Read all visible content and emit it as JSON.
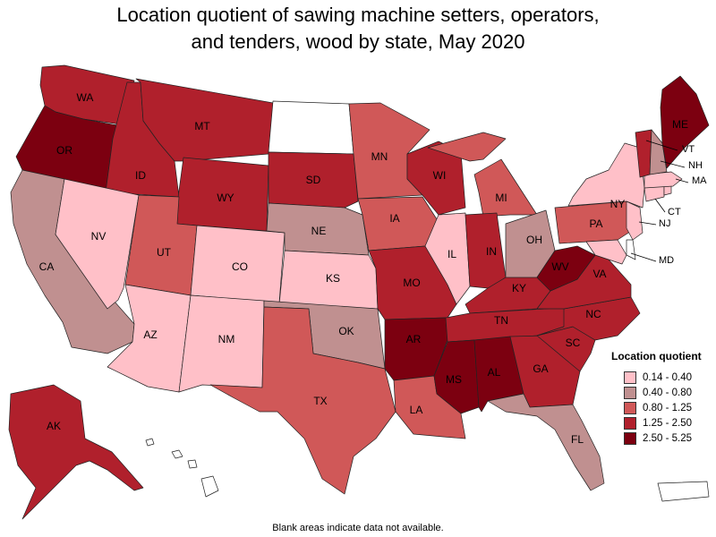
{
  "title_line1": "Location quotient of sawing machine setters, operators,",
  "title_line2": "and tenders, wood by state, May 2020",
  "footnote": "Blank areas indicate data not available.",
  "legend": {
    "title": "Location quotient",
    "items": [
      {
        "label": "0.14 - 0.40",
        "color": "#ffc0c8"
      },
      {
        "label": "0.40 - 0.80",
        "color": "#c09090"
      },
      {
        "label": "0.80 - 1.25",
        "color": "#d05858"
      },
      {
        "label": "1.25 - 2.50",
        "color": "#b0202c"
      },
      {
        "label": "2.50 - 5.25",
        "color": "#7c0010"
      }
    ]
  },
  "no_data_color": "#ffffff",
  "states": {
    "WA": {
      "name": "WA",
      "bin": 3
    },
    "OR": {
      "name": "OR",
      "bin": 4
    },
    "CA": {
      "name": "CA",
      "bin": 1
    },
    "ID": {
      "name": "ID",
      "bin": 3
    },
    "NV": {
      "name": "NV",
      "bin": 0
    },
    "MT": {
      "name": "MT",
      "bin": 3
    },
    "WY": {
      "name": "WY",
      "bin": 3
    },
    "UT": {
      "name": "UT",
      "bin": 2
    },
    "AZ": {
      "name": "AZ",
      "bin": 0
    },
    "CO": {
      "name": "CO",
      "bin": 0
    },
    "NM": {
      "name": "NM",
      "bin": 0
    },
    "ND": {
      "name": "",
      "bin": -1
    },
    "SD": {
      "name": "SD",
      "bin": 3
    },
    "NE": {
      "name": "NE",
      "bin": 1
    },
    "KS": {
      "name": "KS",
      "bin": 0
    },
    "OK": {
      "name": "OK",
      "bin": 1
    },
    "TX": {
      "name": "TX",
      "bin": 2
    },
    "MN": {
      "name": "MN",
      "bin": 2
    },
    "IA": {
      "name": "IA",
      "bin": 2
    },
    "MO": {
      "name": "MO",
      "bin": 3
    },
    "AR": {
      "name": "AR",
      "bin": 4
    },
    "LA": {
      "name": "LA",
      "bin": 2
    },
    "WI": {
      "name": "WI",
      "bin": 3
    },
    "IL": {
      "name": "IL",
      "bin": 0
    },
    "MI": {
      "name": "MI",
      "bin": 2
    },
    "IN": {
      "name": "IN",
      "bin": 3
    },
    "OH": {
      "name": "OH",
      "bin": 1
    },
    "KY": {
      "name": "KY",
      "bin": 3
    },
    "TN": {
      "name": "TN",
      "bin": 3
    },
    "MS": {
      "name": "MS",
      "bin": 4
    },
    "AL": {
      "name": "AL",
      "bin": 4
    },
    "GA": {
      "name": "GA",
      "bin": 3
    },
    "FL": {
      "name": "FL",
      "bin": 1
    },
    "SC": {
      "name": "SC",
      "bin": 3
    },
    "NC": {
      "name": "NC",
      "bin": 3
    },
    "VA": {
      "name": "VA",
      "bin": 3
    },
    "WV": {
      "name": "WV",
      "bin": 4
    },
    "PA": {
      "name": "PA",
      "bin": 2
    },
    "NY": {
      "name": "NY",
      "bin": 0
    },
    "VT": {
      "name": "VT",
      "bin": 3
    },
    "NH": {
      "name": "NH",
      "bin": 1
    },
    "ME": {
      "name": "ME",
      "bin": 4
    },
    "MA": {
      "name": "MA",
      "bin": 0
    },
    "CT": {
      "name": "CT",
      "bin": 0
    },
    "RI": {
      "name": "",
      "bin": 0
    },
    "NJ": {
      "name": "NJ",
      "bin": 0
    },
    "DE": {
      "name": "",
      "bin": -1
    },
    "MD": {
      "name": "MD",
      "bin": 0
    },
    "AK": {
      "name": "AK",
      "bin": 3
    },
    "HI": {
      "name": "",
      "bin": -1
    },
    "PR": {
      "name": "",
      "bin": -1
    }
  }
}
